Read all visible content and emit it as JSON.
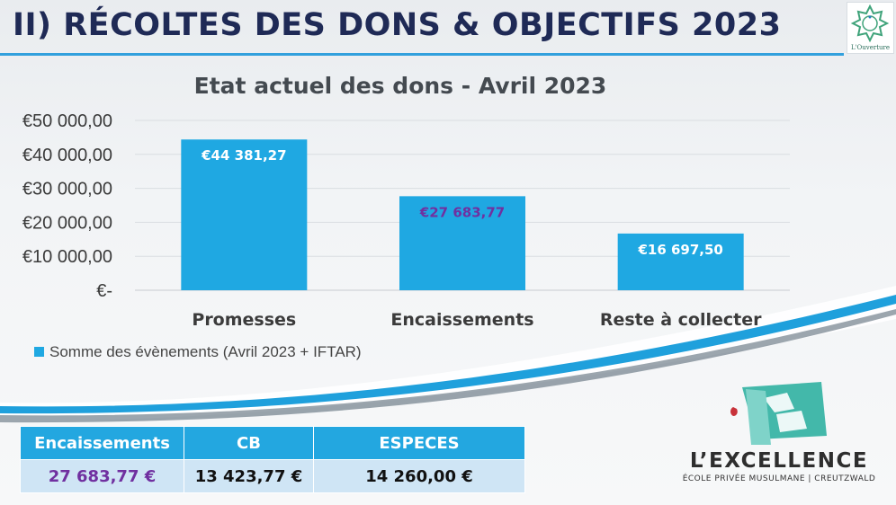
{
  "slide": {
    "title": "II) RÉCOLTES DES DONS & OBJECTIFS 2023"
  },
  "colors": {
    "title": "#1f2a56",
    "accent": "#32a0dd",
    "bar": "#1fa8e2",
    "purple": "#7030a0",
    "logo_teal": "#3fb6a8"
  },
  "brand_logo": {
    "caption": "L'Ouverture"
  },
  "chart_data": {
    "type": "bar",
    "title": "Etat actuel des dons - Avril 2023",
    "categories": [
      "Promesses",
      "Encaissements",
      "Reste à collecter"
    ],
    "series": [
      {
        "name": "Somme des évènements (Avril 2023 + IFTAR)",
        "values": [
          44381.27,
          27683.77,
          16697.5
        ]
      }
    ],
    "data_labels": [
      "€44 381,27",
      "€27 683,77",
      "€16 697,50"
    ],
    "data_label_colors": [
      "#ffffff",
      "#7030a0",
      "#ffffff"
    ],
    "y_ticks": [
      0,
      10000,
      20000,
      30000,
      40000,
      50000
    ],
    "y_tick_labels": [
      "€-",
      "€10 000,00",
      "€20 000,00",
      "€30 000,00",
      "€40 000,00",
      "€50 000,00"
    ],
    "ylim": [
      0,
      50000
    ],
    "grid": true,
    "legend_position": "bottom-left"
  },
  "table": {
    "headers": [
      "Encaissements",
      "CB",
      "ESPECES"
    ],
    "rows": [
      [
        "27 683,77 €",
        "13 423,77 €",
        "14 260,00 €"
      ]
    ]
  },
  "school": {
    "name": "L’EXCELLENCE",
    "subtitle": "ÉCOLE PRIVÉE MUSULMANE | CREUTZWALD"
  }
}
